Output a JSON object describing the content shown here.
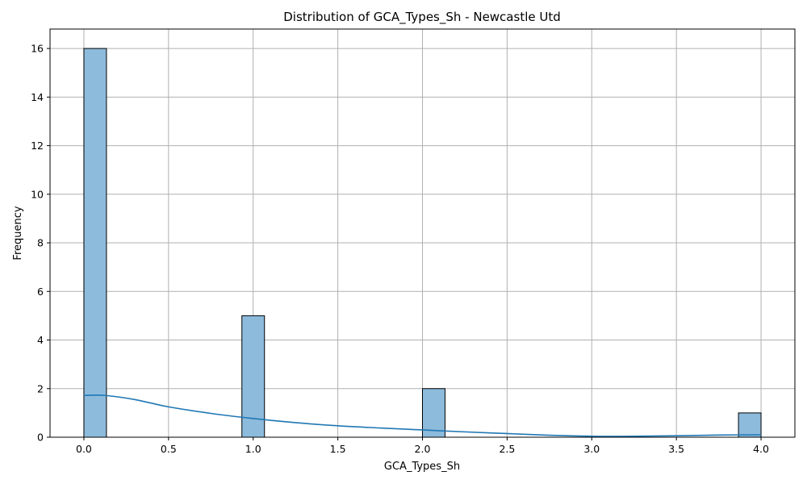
{
  "chart_data": {
    "type": "bar",
    "title": "Distribution of GCA_Types_Sh - Newcastle Utd",
    "xlabel": "GCA_Types_Sh",
    "ylabel": "Frequency",
    "xlim": [
      -0.2,
      4.2
    ],
    "ylim": [
      0,
      16.8
    ],
    "x_ticks": [
      0.0,
      0.5,
      1.0,
      1.5,
      2.0,
      2.5,
      3.0,
      3.5,
      4.0
    ],
    "x_tick_labels": [
      "0.0",
      "0.5",
      "1.0",
      "1.5",
      "2.0",
      "2.5",
      "3.0",
      "3.5",
      "4.0"
    ],
    "y_ticks": [
      0,
      2,
      4,
      6,
      8,
      10,
      12,
      14,
      16
    ],
    "y_tick_labels": [
      "0",
      "2",
      "4",
      "6",
      "8",
      "10",
      "12",
      "14",
      "16"
    ],
    "grid": true,
    "bin_width": 0.1333,
    "bins": [
      {
        "x_start": 0.0,
        "x_end": 0.1333,
        "count": 16
      },
      {
        "x_start": 0.9333,
        "x_end": 1.0667,
        "count": 5
      },
      {
        "x_start": 2.0,
        "x_end": 2.1333,
        "count": 2
      },
      {
        "x_start": 3.8667,
        "x_end": 4.0,
        "count": 1
      }
    ],
    "kde": {
      "x": [
        0.0,
        0.1,
        0.2,
        0.3,
        0.4,
        0.5,
        0.75,
        1.0,
        1.25,
        1.5,
        1.75,
        2.0,
        2.25,
        2.5,
        2.75,
        3.0,
        3.25,
        3.5,
        3.75,
        4.0
      ],
      "y": [
        1.72,
        1.73,
        1.66,
        1.55,
        1.4,
        1.25,
        0.98,
        0.77,
        0.6,
        0.47,
        0.38,
        0.3,
        0.22,
        0.15,
        0.08,
        0.04,
        0.04,
        0.06,
        0.09,
        0.1
      ]
    },
    "colors": {
      "bar_fill": "#8dbbdc",
      "bar_edge": "#000000",
      "kde_line": "#1f77b4",
      "grid": "#b0b0b0"
    }
  }
}
